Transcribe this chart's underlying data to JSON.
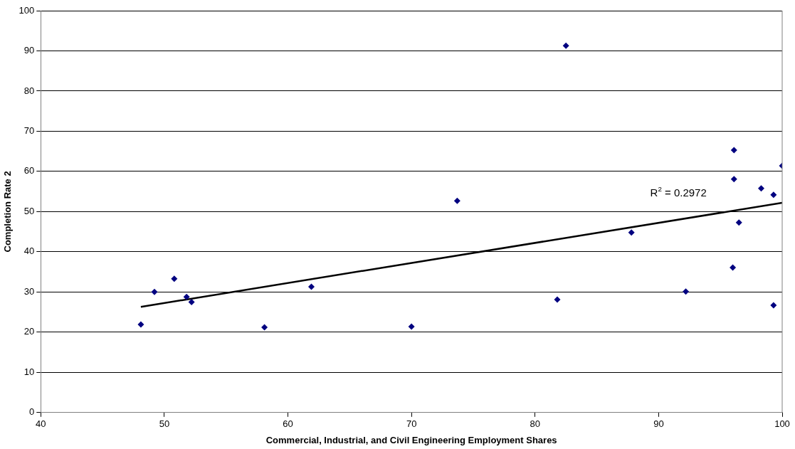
{
  "chart_data": {
    "type": "scatter",
    "xlabel": "Commercial, Industrial, and Civil Engineering Employment Shares",
    "ylabel": "Completion Rate 2",
    "x": [
      48.1,
      49.2,
      50.8,
      51.8,
      52.2,
      58.1,
      61.9,
      70.0,
      73.7,
      81.8,
      82.5,
      87.8,
      92.2,
      96.0,
      96.1,
      96.1,
      96.5,
      98.3,
      99.3,
      99.3,
      100
    ],
    "series": [
      {
        "name": null,
        "color": "#000080",
        "marker": "diamond",
        "values": [
          21.9,
          30.0,
          33.3,
          28.8,
          27.5,
          21.2,
          31.3,
          21.4,
          52.7,
          28.1,
          91.3,
          44.8,
          30.1,
          36.1,
          58.1,
          65.3,
          47.3,
          55.8,
          54.2,
          26.7,
          61.4
        ]
      },
      {
        "type": "line",
        "color": "#000000",
        "marker": "none",
        "line_style": "solid",
        "x": [
          48.1,
          100
        ],
        "values": [
          26.3,
          52.2
        ]
      }
    ],
    "xlim": [
      40,
      100
    ],
    "xticks": [
      40,
      50,
      60,
      70,
      80,
      90,
      100
    ],
    "ylim": [
      0,
      100
    ],
    "yticks": [
      0,
      10,
      20,
      30,
      40,
      50,
      60,
      70,
      80,
      90,
      100
    ],
    "grid": "y",
    "legend": false,
    "annotations": [
      "R$^{2}$ = 0.2972"
    ]
  }
}
